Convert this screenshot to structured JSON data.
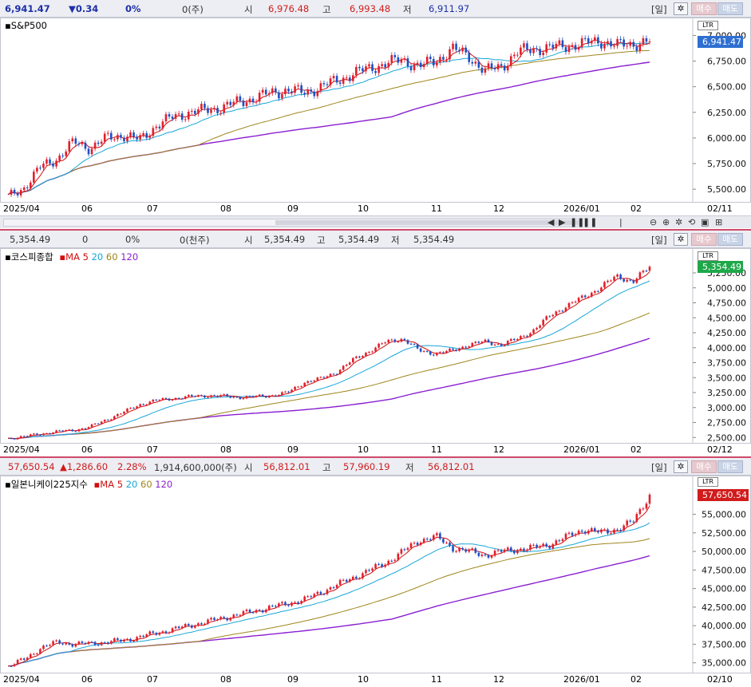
{
  "panels": [
    {
      "id": "sp500",
      "header": {
        "price": "6,941.47",
        "change": "▼0.34",
        "change_pct": "0%",
        "volume": "0(주)",
        "open_label": "시",
        "open": "6,976.48",
        "high_label": "고",
        "high": "6,993.48",
        "low_label": "저",
        "low": "6,911.97",
        "period": "[일]",
        "buy": "매수",
        "sell": "매도"
      },
      "legend": {
        "name": "S&P500",
        "ma": []
      },
      "tag": "LTR",
      "last_price": "6,941.47",
      "y_ticks": [
        "7,000.00",
        "6,750.00",
        "6,500.00",
        "6,250.00",
        "6,000.00",
        "5,750.00",
        "5,500.00"
      ],
      "x_labels": [
        "2025/04",
        "06",
        "07",
        "08",
        "09",
        "10",
        "11",
        "12",
        "2026/01",
        "02"
      ],
      "end_date": "02/11",
      "colors": {
        "up": "#e0202c",
        "down": "#1e4fc4",
        "ma5": "#d01010",
        "ma20": "#18a7d8",
        "ma60": "#a0861c",
        "ma120": "#8a1fd0",
        "price_tag": "#2f6fd1"
      },
      "chart_data": {
        "type": "candlestick",
        "start": 5420,
        "points": [
          5420,
          5520,
          5720,
          5800,
          5960,
          5900,
          6000,
          6030,
          5980,
          6120,
          6200,
          6250,
          6270,
          6300,
          6350,
          6390,
          6440,
          6470,
          6440,
          6500,
          6560,
          6630,
          6680,
          6730,
          6760,
          6700,
          6750,
          6870,
          6800,
          6650,
          6700,
          6840,
          6870,
          6880,
          6900,
          6920,
          6950,
          6900,
          6920,
          6941
        ],
        "ylim": [
          5400,
          7050
        ]
      }
    },
    {
      "id": "kospi",
      "header": {
        "price": "5,354.49",
        "change": "0",
        "change_pct": "0%",
        "volume": "0(천주)",
        "open_label": "시",
        "open": "5,354.49",
        "high_label": "고",
        "high": "5,354.49",
        "low_label": "저",
        "low": "5,354.49",
        "period": "[일]",
        "buy": "매수",
        "sell": "매도"
      },
      "legend": {
        "name": "코스피종합",
        "ma": [
          "MA",
          "5",
          "20",
          "60",
          "120"
        ]
      },
      "tag": "LTR",
      "last_price": "5,354.49",
      "y_ticks": [
        "5,250.00",
        "5,000.00",
        "4,750.00",
        "4,500.00",
        "4,250.00",
        "4,000.00",
        "3,750.00",
        "3,500.00",
        "3,250.00",
        "3,000.00",
        "2,750.00",
        "2,500.00"
      ],
      "x_labels": [
        "2025/04",
        "06",
        "07",
        "08",
        "09",
        "10",
        "11",
        "12",
        "2026/01",
        "02"
      ],
      "end_date": "02/12",
      "colors": {
        "up": "#e0202c",
        "down": "#1e4fc4",
        "ma5": "#d01010",
        "ma20": "#18a7d8",
        "ma60": "#a0861c",
        "ma120": "#8a1fd0",
        "price_tag": "#1ea84a"
      },
      "chart_data": {
        "type": "candlestick",
        "points": [
          2480,
          2520,
          2560,
          2600,
          2620,
          2680,
          2800,
          2920,
          3050,
          3120,
          3150,
          3180,
          3200,
          3190,
          3170,
          3180,
          3200,
          3250,
          3420,
          3480,
          3600,
          3800,
          3950,
          4100,
          4150,
          3950,
          3900,
          3950,
          4050,
          4100,
          4050,
          4150,
          4300,
          4550,
          4700,
          4850,
          5000,
          5200,
          5100,
          5354
        ],
        "ylim": [
          2450,
          5450
        ]
      }
    },
    {
      "id": "nikkei",
      "header": {
        "price": "57,650.54",
        "change": "▲1,286.60",
        "change_pct": "2.28%",
        "volume": "1,914,600,000(주)",
        "open_label": "시",
        "open": "56,812.01",
        "high_label": "고",
        "high": "57,960.19",
        "low_label": "저",
        "low": "56,812.01",
        "period": "[일]",
        "buy": "매수",
        "sell": "매도"
      },
      "legend": {
        "name": "일본니케이225지수",
        "ma": [
          "MA",
          "5",
          "20",
          "60",
          "120"
        ]
      },
      "tag": "LTR",
      "last_price": "57,650.54",
      "y_ticks": [
        "55,000.00",
        "52,500.00",
        "50,000.00",
        "47,500.00",
        "45,000.00",
        "42,500.00",
        "40,000.00",
        "37,500.00",
        "35,000.00"
      ],
      "x_labels": [
        "2025/04",
        "06",
        "07",
        "08",
        "09",
        "10",
        "11",
        "12",
        "2026/01",
        "02"
      ],
      "end_date": "02/10",
      "colors": {
        "up": "#e0202c",
        "down": "#1e4fc4",
        "ma5": "#d01010",
        "ma20": "#18a7d8",
        "ma60": "#a0861c",
        "ma120": "#8a1fd0",
        "price_tag": "#d11c1c"
      },
      "chart_data": {
        "type": "candlestick",
        "points": [
          34500,
          35500,
          37000,
          37800,
          37500,
          37600,
          37800,
          38000,
          38500,
          39000,
          39500,
          40000,
          40500,
          41000,
          41500,
          42000,
          42500,
          43000,
          43500,
          44500,
          45500,
          46500,
          47500,
          48500,
          50000,
          51500,
          52000,
          50500,
          50000,
          49500,
          50000,
          50300,
          50500,
          51000,
          52000,
          53000,
          52500,
          53000,
          54000,
          57650
        ],
        "ylim": [
          34000,
          58500
        ]
      }
    }
  ],
  "toolbar": {
    "scroll_controls": [
      "◀",
      "▶",
      "❚❚",
      "❚❚",
      "|",
      "⊖",
      "⊕",
      "✲",
      "⟲",
      "▣",
      "⊞"
    ]
  }
}
